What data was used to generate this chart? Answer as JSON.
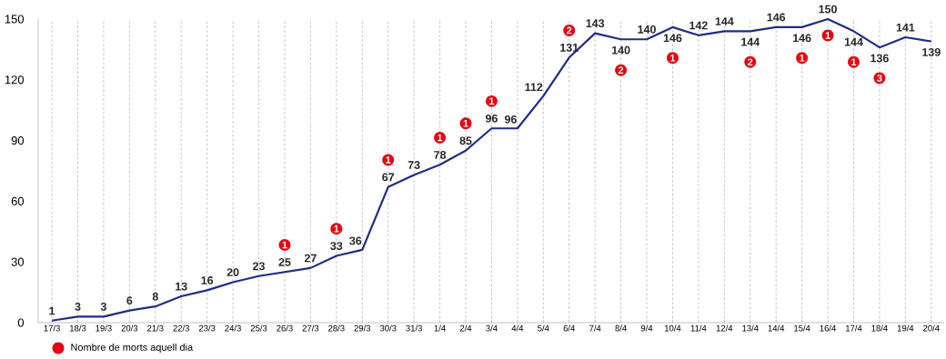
{
  "chart_data": {
    "type": "line",
    "categories": [
      "17/3",
      "18/3",
      "19/3",
      "20/3",
      "21/3",
      "22/3",
      "23/3",
      "24/3",
      "25/3",
      "26/3",
      "27/3",
      "28/3",
      "29/3",
      "30/3",
      "31/3",
      "1/4",
      "2/4",
      "3/4",
      "4/4",
      "5/4",
      "6/4",
      "7/4",
      "8/4",
      "9/4",
      "10/4",
      "11/4",
      "12/4",
      "13/4",
      "14/4",
      "15/4",
      "16/4",
      "17/4",
      "18/4",
      "19/4",
      "20/4"
    ],
    "values": [
      1,
      3,
      3,
      6,
      8,
      13,
      16,
      20,
      23,
      25,
      27,
      33,
      36,
      67,
      73,
      78,
      85,
      96,
      96,
      112,
      131,
      143,
      140,
      140,
      146,
      142,
      144,
      144,
      146,
      146,
      150,
      144,
      136,
      141,
      139
    ],
    "value_labels": [
      "1",
      "3",
      "3",
      "6",
      "8",
      "13",
      "16",
      "20",
      "23",
      "25",
      "27",
      "33",
      "36",
      "67",
      "73",
      "78",
      "85",
      "96",
      "96",
      "112",
      "131",
      "143",
      "140",
      "140",
      "146",
      "142",
      "144",
      "144",
      "146",
      "146",
      "150",
      "144",
      "136",
      "141",
      "139"
    ],
    "color": "#1f2d86",
    "ylim": [
      0,
      150
    ],
    "yticks": [
      0,
      30,
      60,
      90,
      120,
      150
    ],
    "grid": "x",
    "marker": "none",
    "line_style": "solid",
    "annotations": [
      {
        "text": "1",
        "x": "26/3",
        "y": 25
      },
      {
        "text": "1",
        "x": "28/3",
        "y": 33
      },
      {
        "text": "1",
        "x": "30/3",
        "y": 67
      },
      {
        "text": "1",
        "x": "1/4",
        "y": 78
      },
      {
        "text": "1",
        "x": "2/4",
        "y": 85
      },
      {
        "text": "1",
        "x": "3/4",
        "y": 96
      },
      {
        "text": "2",
        "x": "6/4",
        "y": 131
      },
      {
        "text": "2",
        "x": "8/4",
        "y": 140
      },
      {
        "text": "1",
        "x": "10/4",
        "y": 146
      },
      {
        "text": "2",
        "x": "13/4",
        "y": 144
      },
      {
        "text": "1",
        "x": "15/4",
        "y": 146
      },
      {
        "text": "1",
        "x": "16/4",
        "y": 150
      },
      {
        "text": "1",
        "x": "17/4",
        "y": 144
      },
      {
        "text": "3",
        "x": "18/4",
        "y": 136
      },
      "Nombre de morts aquell dia"
    ]
  }
}
